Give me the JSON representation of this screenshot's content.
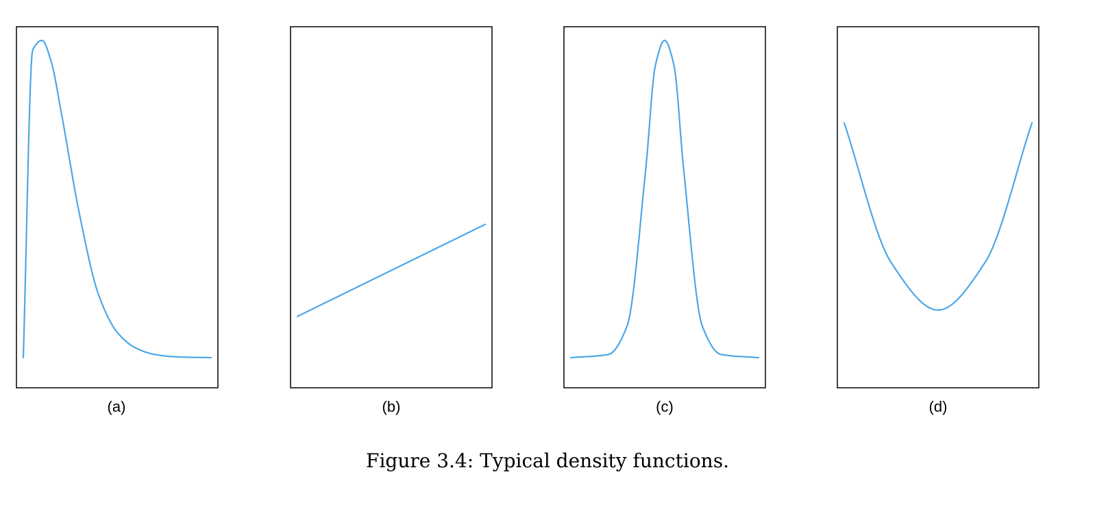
{
  "colors": {
    "curve": "#4da6e6",
    "frame": "#000000"
  },
  "caption": "Figure 3.4: Typical density functions.",
  "chart_data": [
    {
      "type": "line",
      "label": "(a)",
      "shape": "right-skewed",
      "x": [
        0,
        0.05,
        0.1,
        0.15,
        0.2,
        0.3,
        0.4,
        0.5,
        0.6,
        0.7,
        0.8,
        0.9,
        1
      ],
      "y": [
        0,
        0.97,
        1,
        0.93,
        0.78,
        0.45,
        0.2,
        0.08,
        0.03,
        0.01,
        0.003,
        0.001,
        0
      ]
    },
    {
      "type": "line",
      "label": "(b)",
      "shape": "linear-increasing",
      "x": [
        0,
        1
      ],
      "y": [
        0.13,
        0.42
      ]
    },
    {
      "type": "line",
      "label": "(c)",
      "shape": "bell",
      "x": [
        0,
        0.2,
        0.3,
        0.4,
        0.45,
        0.5,
        0.55,
        0.6,
        0.7,
        0.8,
        1
      ],
      "y": [
        0,
        0.01,
        0.1,
        0.6,
        0.92,
        1,
        0.92,
        0.6,
        0.1,
        0.01,
        0
      ]
    },
    {
      "type": "line",
      "label": "(d)",
      "shape": "u-shaped",
      "x": [
        0,
        0.25,
        0.5,
        0.75,
        1
      ],
      "y": [
        0.74,
        0.3,
        0.15,
        0.3,
        0.74
      ]
    }
  ]
}
